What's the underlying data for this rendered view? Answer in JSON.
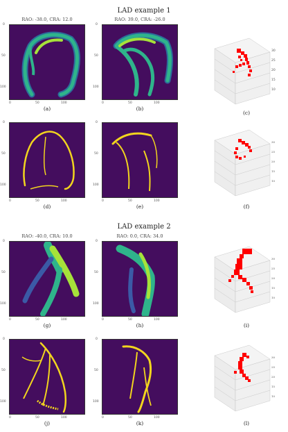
{
  "figure": {
    "section1_title": "LAD example 1",
    "section2_title": "LAD example 2",
    "views": [
      "RAO: -38.0, CRA: 12.0",
      "RAO: 39.0, CRA: -26.0",
      "RAO: -40.0, CRA: 10.0",
      "RAO: 0.0, CRA: 34.0"
    ],
    "captions": [
      "(a)",
      "(b)",
      "(c)",
      "(d)",
      "(e)",
      "(f)",
      "(g)",
      "(h)",
      "(i)",
      "(j)",
      "(k)",
      "(l)"
    ],
    "ticks": {
      "y": [
        "0",
        "50",
        "100"
      ],
      "x": [
        "0",
        "50",
        "100"
      ],
      "z3d": [
        "10",
        "15",
        "20",
        "25",
        "30"
      ],
      "x3d": [
        "5",
        "10",
        "15",
        "20",
        "25",
        "30"
      ],
      "y3d": [
        "5",
        "10",
        "15",
        "20",
        "25"
      ]
    },
    "colors": {
      "background": "#440d5e",
      "projection_low": "#3b5aa6",
      "projection_mid": "#2fb48b",
      "projection_high": "#a6e23a",
      "segmentation": "#f2d51e",
      "points3d": "#ff0000"
    }
  }
}
